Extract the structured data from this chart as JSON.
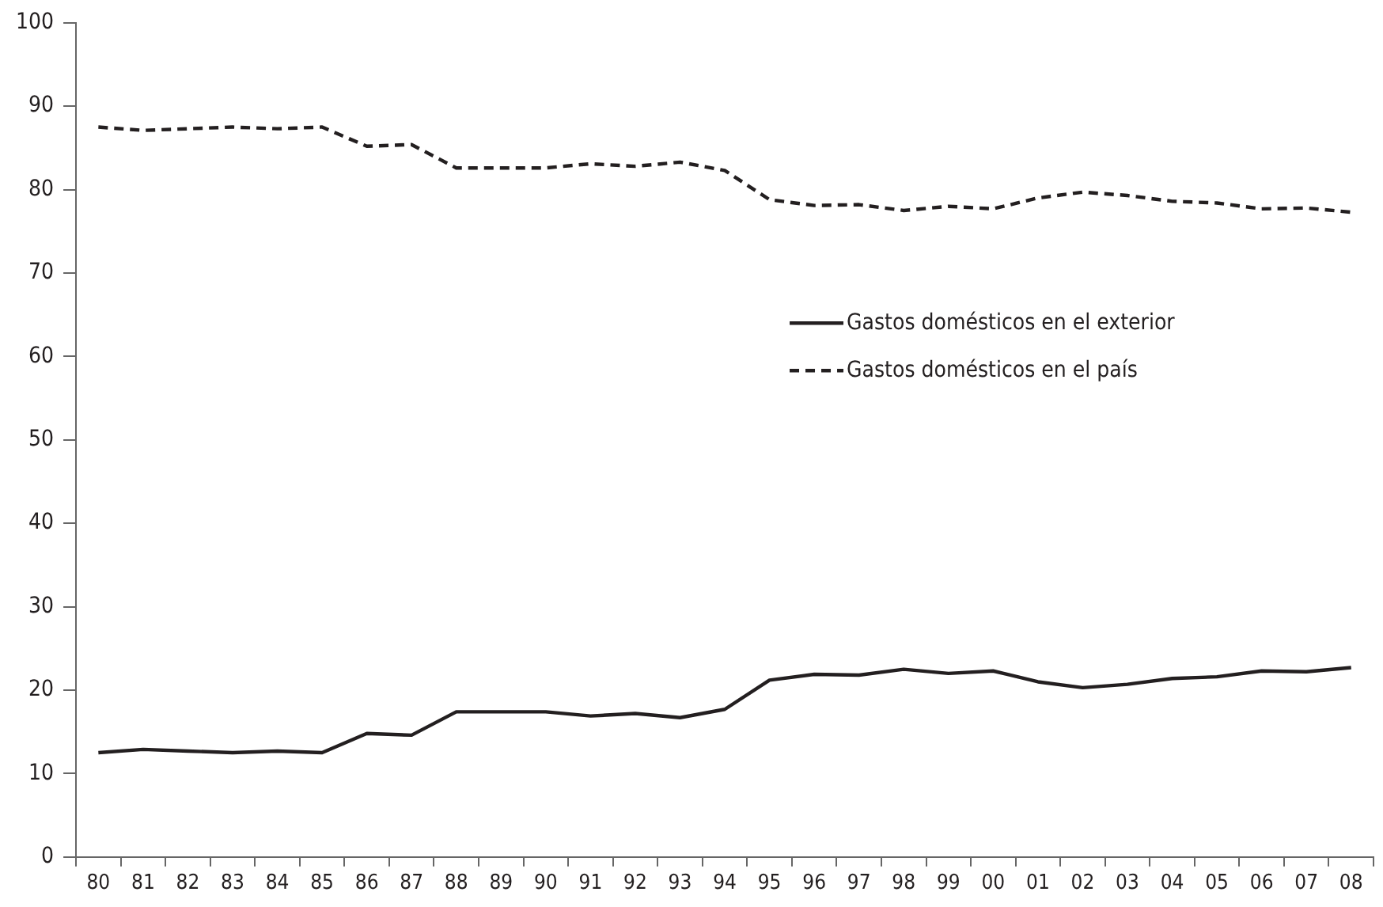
{
  "chart_data": {
    "type": "line",
    "categories": [
      "80",
      "81",
      "82",
      "83",
      "84",
      "85",
      "86",
      "87",
      "88",
      "89",
      "90",
      "91",
      "92",
      "93",
      "94",
      "95",
      "96",
      "97",
      "98",
      "99",
      "00",
      "01",
      "02",
      "03",
      "04",
      "05",
      "06",
      "07",
      "08"
    ],
    "series": [
      {
        "name": "Gastos domésticos en el exterior",
        "color": "#231f20",
        "line_style": "solid",
        "values": [
          12.5,
          12.9,
          12.7,
          12.5,
          12.7,
          12.5,
          14.8,
          14.6,
          17.4,
          17.4,
          17.4,
          16.9,
          17.2,
          16.7,
          17.7,
          21.2,
          21.9,
          21.8,
          22.5,
          22.0,
          22.3,
          21.0,
          20.3,
          20.7,
          21.4,
          21.6,
          22.3,
          22.2,
          22.7
        ]
      },
      {
        "name": "Gastos domésticos en el país",
        "color": "#231f20",
        "line_style": "dashed",
        "values": [
          87.5,
          87.1,
          87.3,
          87.5,
          87.3,
          87.5,
          85.2,
          85.4,
          82.6,
          82.6,
          82.6,
          83.1,
          82.8,
          83.3,
          82.3,
          78.8,
          78.1,
          78.2,
          77.5,
          78.0,
          77.7,
          79.0,
          79.7,
          79.3,
          78.6,
          78.4,
          77.7,
          77.8,
          77.3
        ]
      }
    ],
    "ylim": [
      0,
      100
    ],
    "yticks": [
      0,
      10,
      20,
      30,
      40,
      50,
      60,
      70,
      80,
      90,
      100
    ],
    "grid": false,
    "legend": "right",
    "marker": "none"
  }
}
